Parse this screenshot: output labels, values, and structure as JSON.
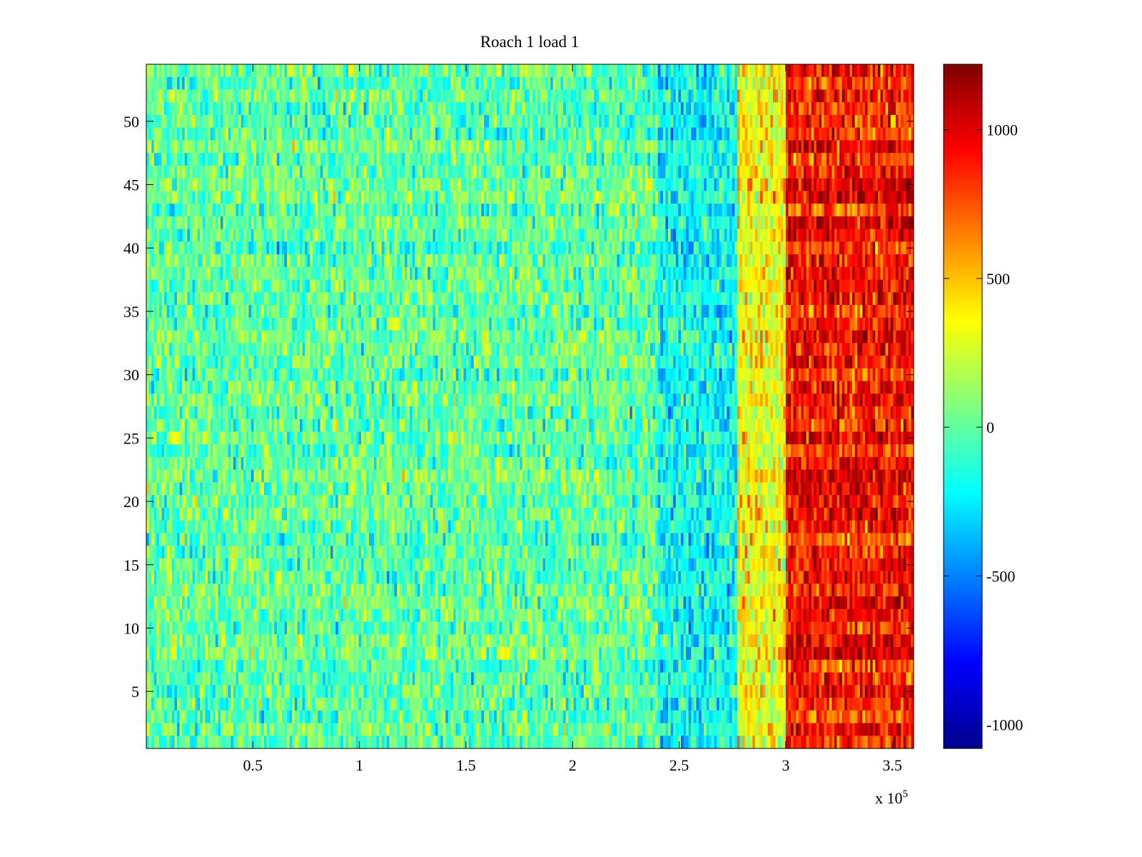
{
  "chart_data": {
    "type": "heatmap",
    "title": "Roach 1 load 1",
    "xlabel": "",
    "ylabel": "",
    "x_multiplier_label": "x 10",
    "x_multiplier_exponent": "5",
    "xlim": [
      0,
      360000
    ],
    "ylim": [
      0.5,
      54.5
    ],
    "xticks": [
      50000,
      100000,
      150000,
      200000,
      250000,
      300000,
      350000
    ],
    "xtick_labels": [
      "0.5",
      "1",
      "1.5",
      "2",
      "2.5",
      "3",
      "3.5"
    ],
    "yticks": [
      5,
      10,
      15,
      20,
      25,
      30,
      35,
      40,
      45,
      50
    ],
    "ytick_labels": [
      "5",
      "10",
      "15",
      "20",
      "25",
      "30",
      "35",
      "40",
      "45",
      "50"
    ],
    "rows": 54,
    "colormap": "jet",
    "clim": [
      -1080,
      1220
    ],
    "colorbar_ticks": [
      -1000,
      -500,
      0,
      500,
      1000
    ],
    "colorbar_tick_labels": [
      "-1000",
      "-500",
      "0",
      "500",
      "1000"
    ],
    "regions": [
      {
        "x_range": [
          0,
          240000
        ],
        "approx_value": 0
      },
      {
        "x_range": [
          240000,
          277000
        ],
        "approx_value": -200
      },
      {
        "x_range": [
          277000,
          300000
        ],
        "approx_value": 350
      },
      {
        "x_range": [
          300000,
          360000
        ],
        "approx_value": 900
      }
    ],
    "grid": false,
    "legend": "colorbar-right"
  }
}
